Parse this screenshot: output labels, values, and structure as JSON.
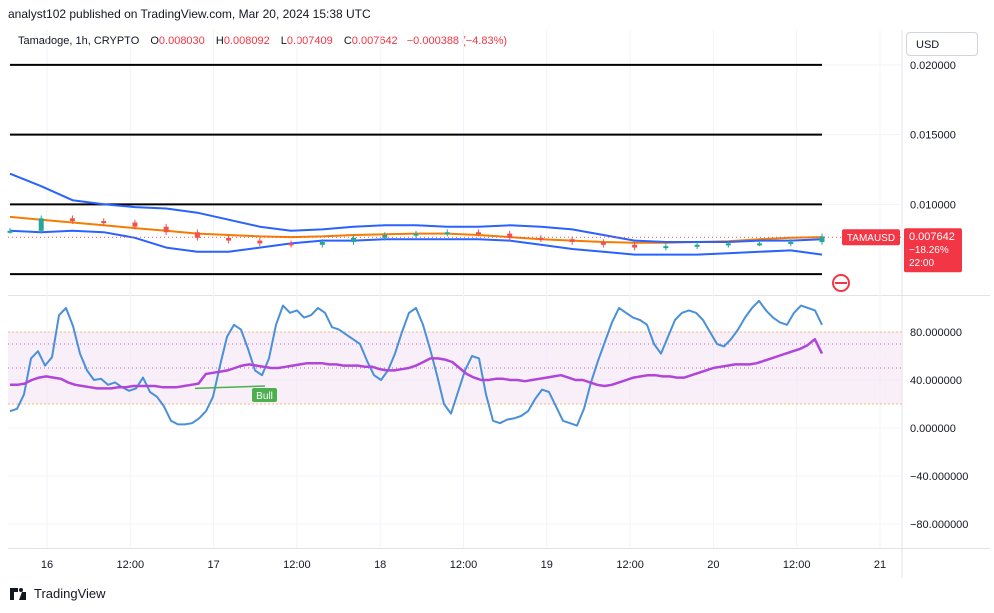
{
  "header": {
    "published_by": "analyst102 published on TradingView.com, Mar 20, 2024 15:38 UTC"
  },
  "legend": {
    "symbol": "Tamadoge, 1h, CRYPTO",
    "open_label": "O",
    "open": "0.008030",
    "high_label": "H",
    "high": "0.008092",
    "low_label": "L",
    "low": "0.007409",
    "close_label": "C",
    "close": "0.007642",
    "change": "−0.000388 (−4.83%)"
  },
  "currency_button": "USD",
  "price_tag": {
    "ticker": "TAMAUSD",
    "price": "0.007642",
    "change_pct": "−18.26%",
    "countdown": "22:00"
  },
  "oscillator_label": "Bull",
  "footer": {
    "brand": "TradingView"
  },
  "colors": {
    "bb": "#2962ff",
    "ma": "#f57c00",
    "k_line": "#4a90d9",
    "rsi": "#b145d8",
    "up": "#26a69a",
    "down": "#ef5350",
    "bull": "#4caf50",
    "tag": "#f23645"
  },
  "chart_data": [
    {
      "type": "line",
      "title": "",
      "ylim": [
        0.0035,
        0.0225
      ],
      "y_ticks": [
        "0.020000",
        "0.015000",
        "0.010000"
      ],
      "x_ticks": [
        "16",
        "12:00",
        "17",
        "12:00",
        "18",
        "12:00",
        "19",
        "12:00",
        "20",
        "12:00",
        "21"
      ],
      "horizontal_levels": [
        0.02,
        0.015,
        0.01,
        0.005
      ],
      "last_price": 0.007642,
      "series": [
        {
          "values": [
            0.0091,
            0.0089,
            0.0087,
            0.0085,
            0.0083,
            0.0081,
            0.0079,
            0.0078,
            0.0077,
            0.00765,
            0.0077,
            0.0078,
            0.00785,
            0.0079,
            0.0079,
            0.0078,
            0.00765,
            0.0075,
            0.0074,
            0.0073,
            0.00725,
            0.00725,
            0.0073,
            0.00735,
            0.0075,
            0.0076,
            0.00765
          ]
        },
        {
          "values": [
            0.0122,
            0.0113,
            0.0103,
            0.01,
            0.0098,
            0.0097,
            0.0094,
            0.0089,
            0.0084,
            0.0081,
            0.0082,
            0.0084,
            0.0085,
            0.0085,
            0.0084,
            0.0084,
            0.0085,
            0.0084,
            0.0082,
            0.0078,
            0.0074,
            0.0073,
            0.0073,
            0.0073,
            0.0074,
            0.0074,
            0.0075
          ]
        },
        {
          "values": [
            0.0081,
            0.008,
            0.0081,
            0.008,
            0.0076,
            0.0069,
            0.0066,
            0.0066,
            0.0069,
            0.0072,
            0.0074,
            0.0074,
            0.0075,
            0.0075,
            0.0075,
            0.0075,
            0.0074,
            0.0071,
            0.0068,
            0.0066,
            0.0064,
            0.0064,
            0.0064,
            0.0065,
            0.0066,
            0.0067,
            0.0064
          ]
        }
      ],
      "candles_close": [
        0.0081,
        0.009,
        0.0088,
        0.0087,
        0.0084,
        0.008,
        0.0076,
        0.0074,
        0.0072,
        0.0071,
        0.0073,
        0.0076,
        0.0078,
        0.0079,
        0.008,
        0.0079,
        0.0076,
        0.0075,
        0.0073,
        0.0071,
        0.0069,
        0.007,
        0.0071,
        0.0072,
        0.0072,
        0.0073,
        0.0077
      ]
    },
    {
      "type": "line",
      "title": "",
      "ylim": [
        -100,
        110
      ],
      "y_ticks": [
        "80.000000",
        "40.000000",
        "0.000000",
        "−40.000000",
        "−80.000000"
      ],
      "bands": [
        20,
        50,
        70,
        80
      ],
      "series": [
        {
          "values": [
            14,
            16,
            28,
            58,
            64,
            52,
            59,
            94,
            100,
            85,
            62,
            48,
            40,
            41,
            36,
            38,
            34,
            31,
            33,
            42,
            30,
            26,
            18,
            6,
            3,
            3,
            4,
            8,
            14,
            26,
            52,
            76,
            86,
            82,
            66,
            48,
            44,
            58,
            86,
            102,
            96,
            98,
            92,
            94,
            100,
            96,
            84,
            82,
            78,
            74,
            70,
            56,
            44,
            40,
            48,
            62,
            80,
            96,
            100,
            86,
            66,
            44,
            20,
            12,
            30,
            48,
            60,
            58,
            28,
            6,
            4,
            7,
            8,
            10,
            14,
            24,
            32,
            30,
            18,
            6,
            4,
            2,
            16,
            38,
            56,
            72,
            88,
            100,
            96,
            92,
            90,
            86,
            70,
            62,
            76,
            90,
            96,
            98,
            96,
            90,
            80,
            70,
            68,
            74,
            82,
            92,
            100,
            106,
            98,
            92,
            88,
            86,
            96,
            102,
            100,
            98,
            86
          ]
        },
        {
          "values": [
            36,
            36,
            37,
            40,
            42,
            43,
            42,
            41,
            38,
            36,
            35,
            34,
            33,
            33,
            33,
            34,
            34,
            35,
            35,
            35,
            35,
            34,
            34,
            34,
            35,
            36,
            37,
            45,
            46,
            47,
            48,
            50,
            52,
            53,
            52,
            51,
            50,
            50,
            51,
            52,
            53,
            54,
            54,
            54,
            53,
            53,
            52,
            52,
            52,
            51,
            51,
            49,
            48,
            48,
            49,
            50,
            52,
            55,
            58,
            58,
            57,
            55,
            50,
            45,
            42,
            40,
            40,
            41,
            41,
            40,
            40,
            39,
            40,
            41,
            42,
            43,
            44,
            42,
            40,
            40,
            38,
            36,
            35,
            36,
            38,
            40,
            42,
            43,
            44,
            44,
            43,
            43,
            42,
            42,
            44,
            46,
            48,
            50,
            51,
            52,
            53,
            53,
            53,
            54,
            56,
            58,
            60,
            62,
            64,
            66,
            69,
            74,
            62
          ]
        }
      ]
    }
  ]
}
